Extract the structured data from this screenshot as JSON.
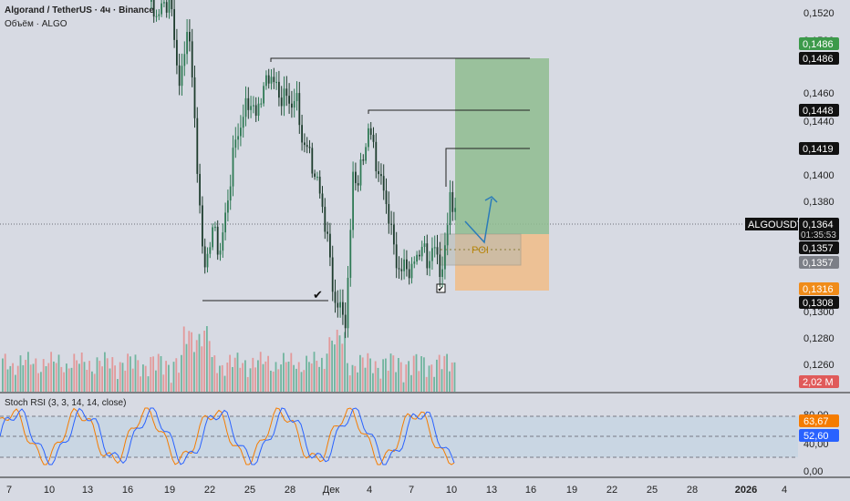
{
  "header": {
    "symbol_line": "Algorand / TetherUS · 4ч · Binance",
    "volume_line": "Объём · ALGO",
    "indicator_line": "Stoch RSI (3, 3, 14, 14, close)"
  },
  "colors": {
    "bg": "#d7dae3",
    "up": "#2f7a55",
    "down": "#1e3d2e",
    "vol_up": "#5fae93",
    "vol_down": "#e58d8d",
    "target_zone": "#8fbc8f",
    "stop_zone": "#f0be8c",
    "poi_box": "#b5b8b0",
    "stoch_k": "#2962ff",
    "stoch_d": "#f57c00",
    "stoch_band": "#c5d4e2",
    "poi_text": "#b8860b",
    "arrow": "#2b7bb9"
  },
  "price_axis": {
    "ticks": [
      "0,1520",
      "0,1500",
      "0,1460",
      "0,1440",
      "0,1400",
      "0,1380",
      "0,1300",
      "0,1280",
      "0,1260"
    ],
    "labels": [
      {
        "text": "0,1486",
        "kind": "target"
      },
      {
        "text": "0,1486",
        "kind": "black"
      },
      {
        "text": "0,1448",
        "kind": "black"
      },
      {
        "text": "0,1419",
        "kind": "black"
      },
      {
        "text": "0,1364",
        "kind": "black"
      },
      {
        "text": "01:35:53",
        "kind": "black"
      },
      {
        "text": "0,1357",
        "kind": "black"
      },
      {
        "text": "0,1357",
        "kind": "grey"
      },
      {
        "text": "0,1316",
        "kind": "stop"
      },
      {
        "text": "0,1308",
        "kind": "black"
      },
      {
        "text": "2,02 M",
        "kind": "volume"
      }
    ],
    "symbol_tag": "ALGOUSDT"
  },
  "stoch_axis": {
    "ticks": [
      "80,00",
      "40,00",
      "0,00"
    ],
    "k_value": "52,60",
    "d_value": "63,67"
  },
  "time_axis": [
    "7",
    "10",
    "13",
    "16",
    "19",
    "22",
    "25",
    "28",
    "Дек",
    "4",
    "7",
    "10",
    "13",
    "16",
    "19",
    "22",
    "25",
    "28",
    "2026",
    "4"
  ],
  "annotations": {
    "poi_label": "POI"
  }
}
